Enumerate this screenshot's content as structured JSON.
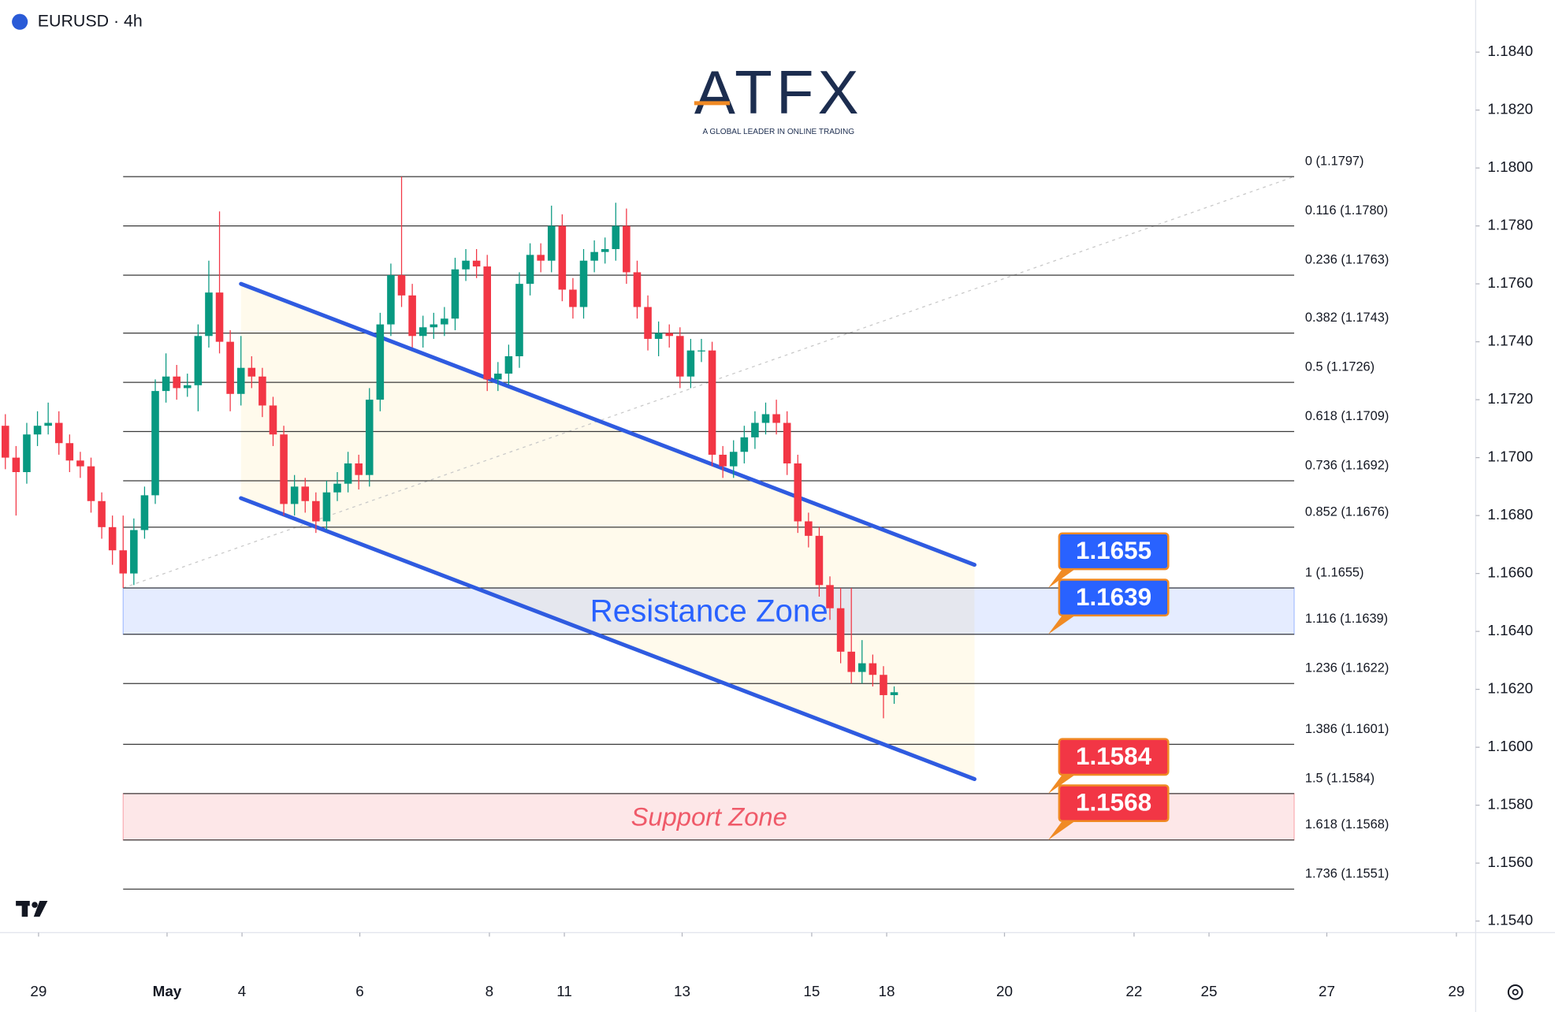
{
  "chart_data": {
    "type": "candlestick",
    "title": "EURUSD · 4h",
    "logo": "ATFX",
    "logo_tagline": "A GLOBAL LEADER IN ONLINE TRADING",
    "up_color": "#089981",
    "down_color": "#f23645",
    "xlim": [
      -0.5,
      137.3
    ],
    "ylim": [
      1.1536,
      1.1858
    ],
    "xticks": [
      {
        "value": 3.1,
        "label": "29"
      },
      {
        "value": 15.1,
        "label": "May"
      },
      {
        "value": 22.1,
        "label": "4"
      },
      {
        "value": 33.1,
        "label": "6"
      },
      {
        "value": 45.2,
        "label": "8"
      },
      {
        "value": 52.2,
        "label": "11"
      },
      {
        "value": 63.2,
        "label": "13"
      },
      {
        "value": 75.3,
        "label": "15"
      },
      {
        "value": 82.3,
        "label": "18"
      },
      {
        "value": 93.3,
        "label": "20"
      },
      {
        "value": 105.4,
        "label": "22"
      },
      {
        "value": 112.4,
        "label": "25"
      },
      {
        "value": 123.4,
        "label": "27"
      },
      {
        "value": 135.5,
        "label": "29"
      }
    ],
    "yticks": [
      {
        "value": 1.154,
        "label": "1.1540"
      },
      {
        "value": 1.156,
        "label": "1.1560"
      },
      {
        "value": 1.158,
        "label": "1.1580"
      },
      {
        "value": 1.16,
        "label": "1.1600"
      },
      {
        "value": 1.162,
        "label": "1.1620"
      },
      {
        "value": 1.164,
        "label": "1.1640"
      },
      {
        "value": 1.166,
        "label": "1.1660"
      },
      {
        "value": 1.168,
        "label": "1.1680"
      },
      {
        "value": 1.17,
        "label": "1.1700"
      },
      {
        "value": 1.172,
        "label": "1.1720"
      },
      {
        "value": 1.174,
        "label": "1.1740"
      },
      {
        "value": 1.176,
        "label": "1.1760"
      },
      {
        "value": 1.178,
        "label": "1.1780"
      },
      {
        "value": 1.18,
        "label": "1.1800"
      },
      {
        "value": 1.182,
        "label": "1.1820"
      },
      {
        "value": 1.184,
        "label": "1.1840"
      }
    ],
    "open": [
      1.1711,
      1.17,
      1.1695,
      1.1708,
      1.1711,
      1.1712,
      1.1705,
      1.1699,
      1.1697,
      1.1685,
      1.1676,
      1.1668,
      1.166,
      1.1675,
      1.1687,
      1.1723,
      1.1728,
      1.1724,
      1.1725,
      1.1742,
      1.1757,
      1.174,
      1.1722,
      1.1731,
      1.1728,
      1.1718,
      1.1708,
      1.1684,
      1.169,
      1.1685,
      1.1678,
      1.1688,
      1.1691,
      1.1698,
      1.1694,
      1.172,
      1.1746,
      1.1763,
      1.1756,
      1.1742,
      1.1745,
      1.1746,
      1.1748,
      1.1765,
      1.1768,
      1.1766,
      1.1727,
      1.1729,
      1.1735,
      1.176,
      1.177,
      1.1768,
      1.178,
      1.1758,
      1.1752,
      1.1768,
      1.1771,
      1.1772,
      1.178,
      1.1764,
      1.1752,
      1.1741,
      1.1743,
      1.1742,
      1.1728,
      1.1737,
      1.1737,
      1.1701,
      1.1697,
      1.1702,
      1.1707,
      1.1712,
      1.1715,
      1.1712,
      1.1698,
      1.1678,
      1.1673,
      1.1656,
      1.1648,
      1.1633,
      1.1626,
      1.1629,
      1.1625,
      1.1618
    ],
    "high": [
      1.1715,
      1.1704,
      1.1712,
      1.1716,
      1.1719,
      1.1716,
      1.1708,
      1.1702,
      1.17,
      1.1688,
      1.168,
      1.168,
      1.1679,
      1.169,
      1.1727,
      1.1736,
      1.1732,
      1.1729,
      1.1746,
      1.1768,
      1.1785,
      1.1744,
      1.1742,
      1.1735,
      1.1731,
      1.1721,
      1.1711,
      1.1694,
      1.1693,
      1.1688,
      1.1692,
      1.1695,
      1.1702,
      1.1701,
      1.1724,
      1.175,
      1.1767,
      1.1797,
      1.176,
      1.1749,
      1.175,
      1.1752,
      1.1769,
      1.1772,
      1.1772,
      1.177,
      1.1733,
      1.1739,
      1.1764,
      1.1774,
      1.1774,
      1.1787,
      1.1784,
      1.1762,
      1.1772,
      1.1775,
      1.1776,
      1.1788,
      1.1786,
      1.1768,
      1.1756,
      1.1747,
      1.1746,
      1.1745,
      1.1741,
      1.1741,
      1.174,
      1.1704,
      1.1706,
      1.1711,
      1.1716,
      1.1719,
      1.172,
      1.1716,
      1.1701,
      1.1681,
      1.1676,
      1.1659,
      1.1655,
      1.1655,
      1.1637,
      1.1632,
      1.1628,
      1.1621
    ],
    "low": [
      1.1696,
      1.168,
      1.1691,
      1.1704,
      1.1708,
      1.1701,
      1.1695,
      1.1693,
      1.1681,
      1.1672,
      1.1663,
      1.1655,
      1.1656,
      1.1672,
      1.1684,
      1.1719,
      1.172,
      1.1721,
      1.1716,
      1.1738,
      1.1736,
      1.1716,
      1.1718,
      1.1724,
      1.1714,
      1.1704,
      1.168,
      1.168,
      1.1681,
      1.1674,
      1.1675,
      1.1685,
      1.1688,
      1.1689,
      1.169,
      1.1716,
      1.1742,
      1.1752,
      1.1738,
      1.1738,
      1.1741,
      1.1742,
      1.1744,
      1.1761,
      1.1762,
      1.1723,
      1.1723,
      1.1725,
      1.1731,
      1.1756,
      1.1764,
      1.1764,
      1.1754,
      1.1748,
      1.1748,
      1.1764,
      1.1767,
      1.1768,
      1.176,
      1.1748,
      1.1737,
      1.1735,
      1.1738,
      1.1724,
      1.1724,
      1.1733,
      1.1697,
      1.1693,
      1.1693,
      1.1698,
      1.1703,
      1.1708,
      1.1708,
      1.1694,
      1.1674,
      1.1669,
      1.1652,
      1.1644,
      1.1629,
      1.1622,
      1.1622,
      1.1621,
      1.161,
      1.1615
    ],
    "close": [
      1.17,
      1.1695,
      1.1708,
      1.1711,
      1.1712,
      1.1705,
      1.1699,
      1.1697,
      1.1685,
      1.1676,
      1.1668,
      1.166,
      1.1675,
      1.1687,
      1.1723,
      1.1728,
      1.1724,
      1.1725,
      1.1742,
      1.1757,
      1.174,
      1.1722,
      1.1731,
      1.1728,
      1.1718,
      1.1708,
      1.1684,
      1.169,
      1.1685,
      1.1678,
      1.1688,
      1.1691,
      1.1698,
      1.1694,
      1.172,
      1.1746,
      1.1763,
      1.1756,
      1.1742,
      1.1745,
      1.1746,
      1.1748,
      1.1765,
      1.1768,
      1.1766,
      1.1727,
      1.1729,
      1.1735,
      1.176,
      1.177,
      1.1768,
      1.178,
      1.1758,
      1.1752,
      1.1768,
      1.1771,
      1.1772,
      1.178,
      1.1764,
      1.1752,
      1.1741,
      1.1743,
      1.1742,
      1.1728,
      1.1737,
      1.1737,
      1.1701,
      1.1697,
      1.1702,
      1.1707,
      1.1712,
      1.1715,
      1.1712,
      1.1698,
      1.1678,
      1.1673,
      1.1656,
      1.1648,
      1.1633,
      1.1626,
      1.1629,
      1.1625,
      1.1618,
      1.1619
    ],
    "fib_levels": [
      {
        "value": 1.1797,
        "label": "0 (1.1797)"
      },
      {
        "value": 1.178,
        "label": "0.116 (1.1780)"
      },
      {
        "value": 1.1763,
        "label": "0.236 (1.1763)"
      },
      {
        "value": 1.1743,
        "label": "0.382 (1.1743)"
      },
      {
        "value": 1.1726,
        "label": "0.5 (1.1726)"
      },
      {
        "value": 1.1709,
        "label": "0.618 (1.1709)"
      },
      {
        "value": 1.1692,
        "label": "0.736 (1.1692)"
      },
      {
        "value": 1.1676,
        "label": "0.852 (1.1676)"
      },
      {
        "value": 1.1655,
        "label": "1 (1.1655)"
      },
      {
        "value": 1.1639,
        "label": "1.116 (1.1639)"
      },
      {
        "value": 1.1622,
        "label": "1.236 (1.1622)"
      },
      {
        "value": 1.1601,
        "label": "1.386 (1.1601)"
      },
      {
        "value": 1.1584,
        "label": "1.5 (1.1584)"
      },
      {
        "value": 1.1568,
        "label": "1.618 (1.1568)"
      },
      {
        "value": 1.1551,
        "label": "1.736 (1.1551)"
      }
    ],
    "channel": [
      {
        "color": "#2f5be0",
        "points": [
          [
            22,
            1.176
          ],
          [
            90.5,
            1.1663
          ]
        ]
      },
      {
        "color": "#2f5be0",
        "points": [
          [
            22,
            1.1686
          ],
          [
            90.5,
            1.1589
          ]
        ]
      }
    ],
    "zones": [
      {
        "label": "Resistance Zone",
        "from": 1.1639,
        "to": 1.1655,
        "color": "#2962ff",
        "text_color": "#2962ff"
      },
      {
        "label": "Support Zone",
        "from": 1.1568,
        "to": 1.1584,
        "color": "#f23645",
        "text_color": "#ef5a69"
      }
    ],
    "callouts": [
      {
        "value": 1.1655,
        "color": "#2962ff"
      },
      {
        "value": 1.1639,
        "color": "#2962ff"
      },
      {
        "value": 1.1584,
        "color": "#f23645"
      },
      {
        "value": 1.1568,
        "color": "#f23645"
      }
    ]
  }
}
